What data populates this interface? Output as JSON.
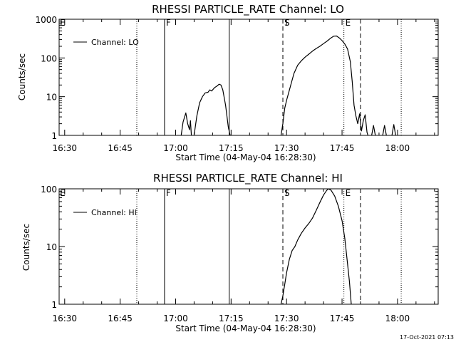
{
  "footer": {
    "timestamp": "17-Oct-2021 07:13"
  },
  "chart_data": [
    {
      "type": "line",
      "title": "RHESSI PARTICLE_RATE Channel: LO",
      "xlabel": "Start Time (04-May-04 16:28:30)",
      "ylabel": "Counts/sec",
      "xlim": [
        "16:28:30",
        "18:11:00"
      ],
      "xticks": [
        "16:30",
        "16:45",
        "17:00",
        "17:15",
        "17:30",
        "17:45",
        "18:00"
      ],
      "ylim": [
        1,
        1000
      ],
      "yscale": "log",
      "yticks": [
        "1",
        "10",
        "100",
        "1000"
      ],
      "legend": {
        "position": "top-left",
        "entries": [
          "Channel: LO"
        ]
      },
      "markers": [
        {
          "time": "16:49:30",
          "style": "dotted"
        },
        {
          "time": "16:57:00",
          "style": "solid",
          "label": "F"
        },
        {
          "time": "17:14:30",
          "style": "solid"
        },
        {
          "time": "17:29:00",
          "style": "dashed",
          "label": "S"
        },
        {
          "time": "17:45:30",
          "style": "dotted",
          "label": "E"
        },
        {
          "time": "17:50:00",
          "style": "dashed"
        },
        {
          "time": "18:01:00",
          "style": "dotted"
        }
      ],
      "series": [
        {
          "name": "Channel: LO",
          "segments": [
            [
              [
                "17:01:30",
                1
              ],
              [
                "17:02:00",
                2.2
              ],
              [
                "17:02:45",
                3.8
              ],
              [
                "17:03:15",
                2.0
              ],
              [
                "17:03:45",
                1.4
              ],
              [
                "17:04:00",
                2.4
              ],
              [
                "17:04:15",
                1
              ]
            ],
            [
              [
                "17:05:00",
                1
              ],
              [
                "17:05:45",
                3.2
              ],
              [
                "17:06:30",
                7
              ],
              [
                "17:07:15",
                10
              ],
              [
                "17:08:00",
                12.5
              ],
              [
                "17:08:45",
                13
              ],
              [
                "17:09:15",
                15
              ],
              [
                "17:09:45",
                14
              ],
              [
                "17:10:30",
                17
              ],
              [
                "17:11:15",
                19
              ],
              [
                "17:11:45",
                21
              ],
              [
                "17:12:15",
                20
              ],
              [
                "17:12:45",
                15
              ],
              [
                "17:13:30",
                6
              ],
              [
                "17:14:15",
                1.6
              ],
              [
                "17:14:45",
                1
              ]
            ],
            [
              [
                "17:28:30",
                1
              ],
              [
                "17:29:00",
                2
              ],
              [
                "17:29:30",
                5
              ],
              [
                "17:30:00",
                8
              ],
              [
                "17:30:30",
                12
              ],
              [
                "17:31:15",
                22
              ],
              [
                "17:32:00",
                40
              ],
              [
                "17:33:00",
                65
              ],
              [
                "17:34:00",
                85
              ],
              [
                "17:35:00",
                105
              ],
              [
                "17:36:00",
                125
              ],
              [
                "17:37:00",
                150
              ],
              [
                "17:38:00",
                175
              ],
              [
                "17:39:00",
                200
              ],
              [
                "17:40:00",
                235
              ],
              [
                "17:41:00",
                275
              ],
              [
                "17:42:00",
                330
              ],
              [
                "17:42:45",
                365
              ],
              [
                "17:43:30",
                370
              ],
              [
                "17:44:15",
                330
              ],
              [
                "17:45:00",
                280
              ],
              [
                "17:45:45",
                230
              ],
              [
                "17:46:30",
                170
              ],
              [
                "17:47:15",
                80
              ],
              [
                "17:47:45",
                25
              ],
              [
                "17:48:15",
                6
              ],
              [
                "17:48:45",
                3.2
              ],
              [
                "17:49:15",
                2
              ],
              [
                "17:49:45",
                3.6
              ],
              [
                "17:50:15",
                1.3
              ],
              [
                "17:50:45",
                2.4
              ],
              [
                "17:51:15",
                3.4
              ],
              [
                "17:51:45",
                1.2
              ],
              [
                "17:52:00",
                1
              ]
            ],
            [
              [
                "17:53:00",
                1
              ],
              [
                "17:53:30",
                1.8
              ],
              [
                "17:54:00",
                1
              ]
            ],
            [
              [
                "17:56:00",
                1
              ],
              [
                "17:56:30",
                1.8
              ],
              [
                "17:57:00",
                1
              ]
            ],
            [
              [
                "17:58:30",
                1
              ],
              [
                "17:59:00",
                1.9
              ],
              [
                "17:59:30",
                1
              ]
            ]
          ]
        }
      ]
    },
    {
      "type": "line",
      "title": "RHESSI PARTICLE_RATE Channel: HI",
      "xlabel": "Start Time (04-May-04 16:28:30)",
      "ylabel": "Counts/sec",
      "xlim": [
        "16:28:30",
        "18:11:00"
      ],
      "xticks": [
        "16:30",
        "16:45",
        "17:00",
        "17:15",
        "17:30",
        "17:45",
        "18:00"
      ],
      "ylim": [
        1,
        100
      ],
      "yscale": "log",
      "yticks": [
        "1",
        "10",
        "100"
      ],
      "legend": {
        "position": "top-left",
        "entries": [
          "Channel: HI"
        ]
      },
      "markers": [
        {
          "time": "16:49:30",
          "style": "dotted"
        },
        {
          "time": "16:57:00",
          "style": "solid",
          "label": "F"
        },
        {
          "time": "17:14:30",
          "style": "solid"
        },
        {
          "time": "17:29:00",
          "style": "dashed",
          "label": "S"
        },
        {
          "time": "17:45:30",
          "style": "dotted",
          "label": "E"
        },
        {
          "time": "17:50:00",
          "style": "dashed"
        },
        {
          "time": "18:01:00",
          "style": "dotted"
        }
      ],
      "series": [
        {
          "name": "Channel: HI",
          "segments": [
            [
              [
                "17:28:30",
                1
              ],
              [
                "17:29:00",
                1.4
              ],
              [
                "17:29:30",
                2.2
              ],
              [
                "17:30:00",
                3.5
              ],
              [
                "17:30:45",
                6
              ],
              [
                "17:31:30",
                8.5
              ],
              [
                "17:32:15",
                10
              ],
              [
                "17:33:00",
                13
              ],
              [
                "17:34:00",
                17
              ],
              [
                "17:35:00",
                21
              ],
              [
                "17:36:00",
                25
              ],
              [
                "17:37:00",
                31
              ],
              [
                "17:38:00",
                42
              ],
              [
                "17:39:00",
                58
              ],
              [
                "17:40:00",
                78
              ],
              [
                "17:40:45",
                92
              ],
              [
                "17:41:15",
                100
              ],
              [
                "17:42:00",
                95
              ],
              [
                "17:43:00",
                75
              ],
              [
                "17:44:00",
                50
              ],
              [
                "17:45:00",
                28
              ],
              [
                "17:45:45",
                14
              ],
              [
                "17:46:30",
                5
              ],
              [
                "17:47:00",
                2.5
              ],
              [
                "17:47:30",
                1
              ]
            ]
          ]
        }
      ]
    }
  ]
}
